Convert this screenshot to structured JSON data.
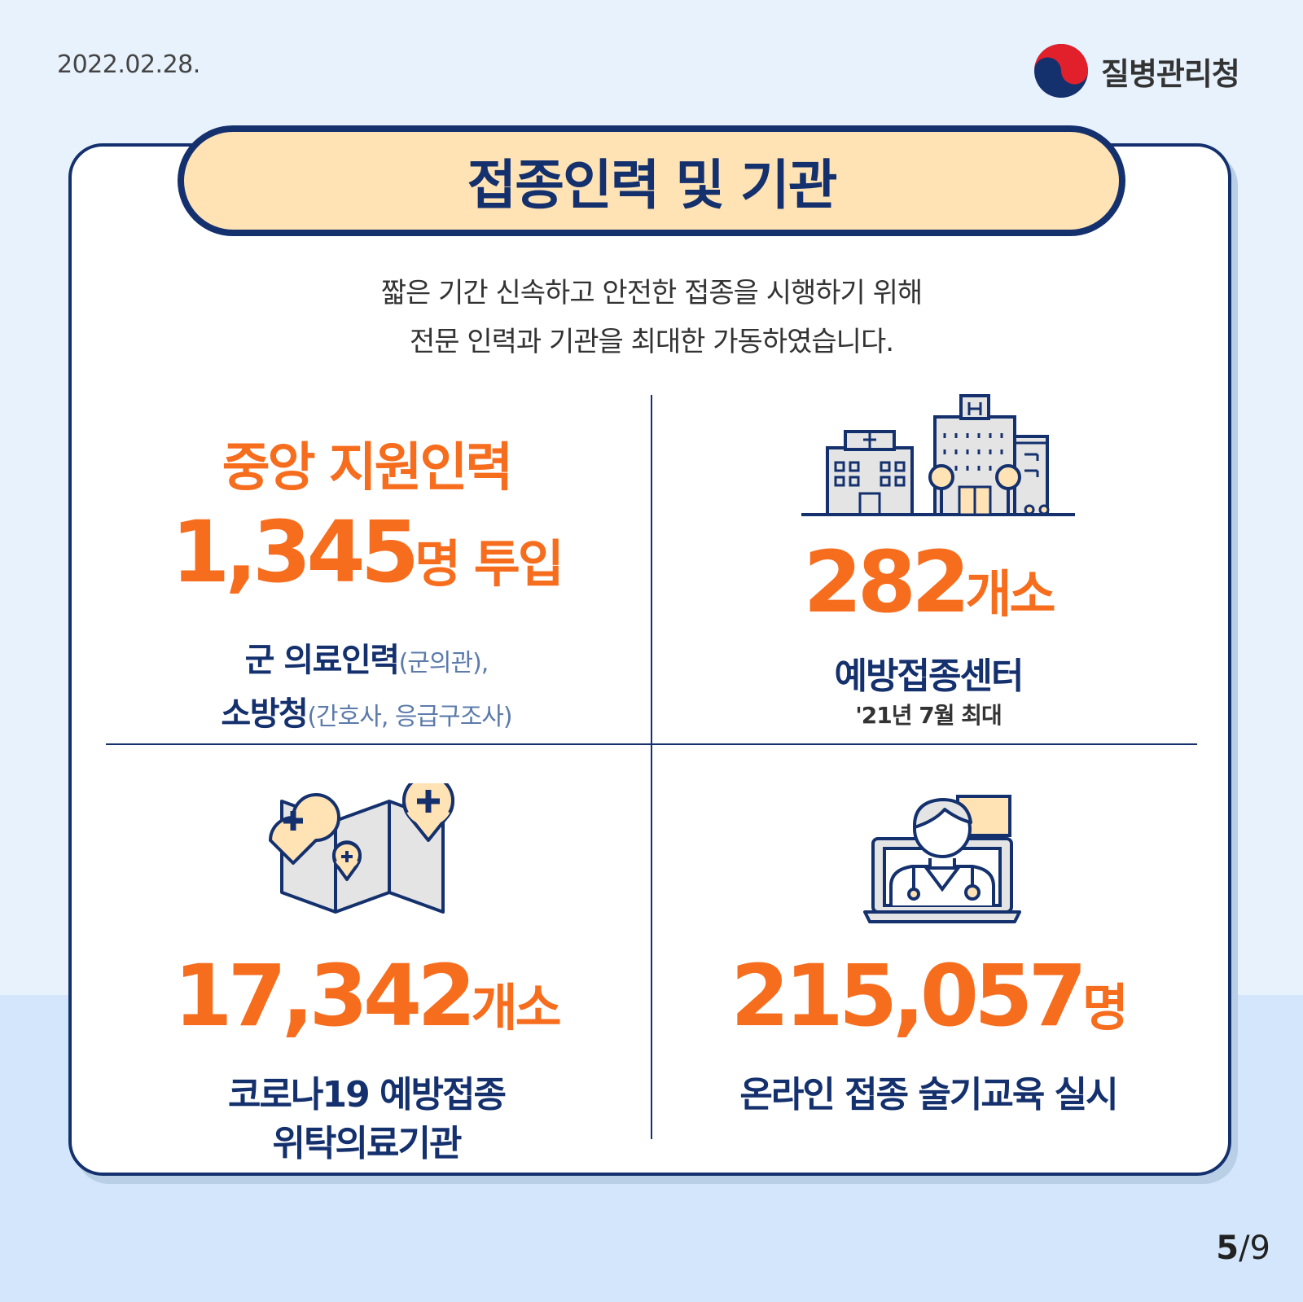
{
  "header": {
    "date": "2022.02.28.",
    "agency": "질병관리청"
  },
  "title": "접종인력 및 기관",
  "intro": {
    "line1": "짧은 기간 신속하고 안전한 접종을 시행하기 위해",
    "line2": "전문 인력과 기관을 최대한 가동하였습니다."
  },
  "stats": {
    "central_support": {
      "heading": "중앙 지원인력",
      "value": "1,345",
      "unit": "명 투입",
      "detail1_main": "군 의료인력",
      "detail1_sub": "(군의관),",
      "detail2_main": "소방청",
      "detail2_sub": "(간호사, 응급구조사)"
    },
    "centers": {
      "value": "282",
      "unit": "개소",
      "label": "예방접종센터",
      "note": "'21년 7월 최대"
    },
    "clinics": {
      "value": "17,342",
      "unit": "개소",
      "label1": "코로나19 예방접종",
      "label2": "위탁의료기관"
    },
    "training": {
      "value": "215,057",
      "unit": "명",
      "label": "온라인 접종 술기교육 실시"
    }
  },
  "pagination": {
    "current": "5",
    "total": "/9"
  },
  "colors": {
    "navy": "#14316e",
    "orange": "#f76d1e",
    "pill": "#ffe3b5",
    "background": "#e8f2fd"
  },
  "icons": [
    "taegeuk-logo-icon",
    "hospital-buildings-icon",
    "map-pins-icon",
    "online-doctor-icon"
  ]
}
